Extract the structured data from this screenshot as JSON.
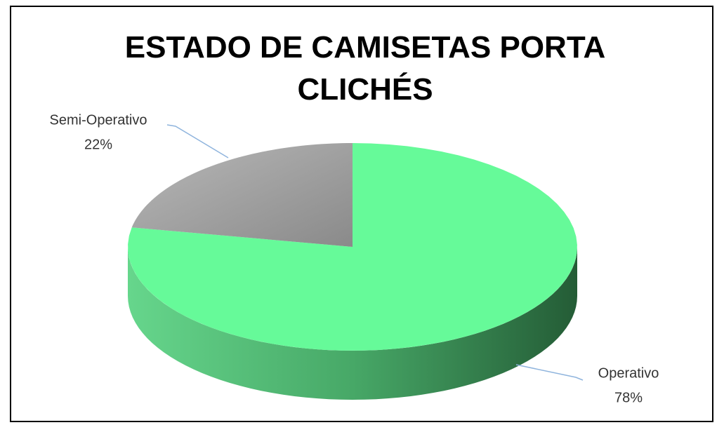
{
  "chart_data": {
    "type": "pie",
    "title": "ESTADO DE CAMISETAS PORTA CLICHÉS",
    "categories": [
      "Operativo",
      "Semi-Operativo"
    ],
    "values": [
      78,
      22
    ],
    "value_labels": [
      "78%",
      "22%"
    ],
    "colors": [
      "#66fa99",
      "#a6a6a6"
    ]
  }
}
